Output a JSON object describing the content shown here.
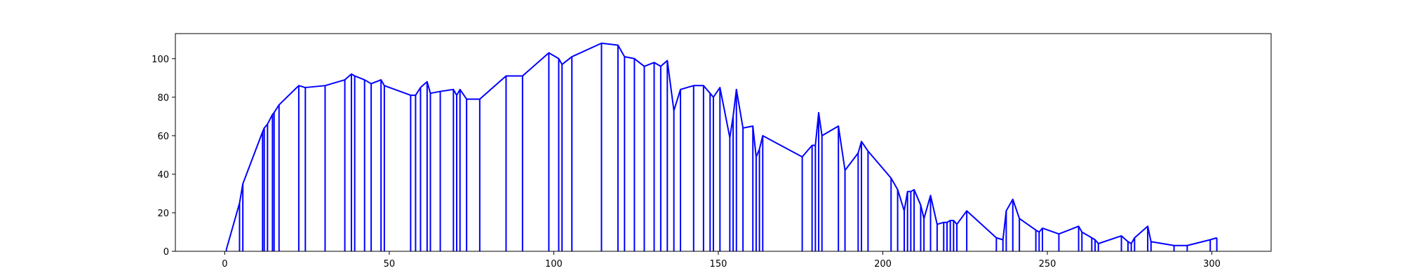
{
  "chart_data": {
    "type": "line",
    "title": "",
    "xlabel": "",
    "ylabel": "",
    "xlim": [
      -15,
      318
    ],
    "ylim": [
      0,
      113
    ],
    "grid": false,
    "xticks": [
      0,
      50,
      100,
      150,
      200,
      250,
      300
    ],
    "yticks": [
      0,
      20,
      40,
      60,
      80,
      100
    ],
    "colors": {
      "series": "#0000ff",
      "axes": "#000000",
      "background": "#ffffff"
    },
    "series": [
      {
        "style": "stems-with-envelope",
        "points": [
          [
            0.5,
            1
          ],
          [
            4.5,
            25
          ],
          [
            5.5,
            35
          ],
          [
            11.5,
            62
          ],
          [
            12,
            64
          ],
          [
            13,
            66
          ],
          [
            14.5,
            71
          ],
          [
            15,
            72
          ],
          [
            16.5,
            76
          ],
          [
            22.5,
            86
          ],
          [
            24.5,
            85
          ],
          [
            30.5,
            86
          ],
          [
            36.5,
            89
          ],
          [
            38.5,
            92
          ],
          [
            39.5,
            91
          ],
          [
            42.5,
            89
          ],
          [
            44.5,
            87
          ],
          [
            47.5,
            89
          ],
          [
            48.5,
            86
          ],
          [
            56.5,
            81
          ],
          [
            58,
            81
          ],
          [
            59.5,
            85
          ],
          [
            61.5,
            88
          ],
          [
            62.5,
            82
          ],
          [
            65.5,
            83
          ],
          [
            69.5,
            84
          ],
          [
            70.5,
            81
          ],
          [
            71.5,
            84
          ],
          [
            73.5,
            79
          ],
          [
            77.5,
            79
          ],
          [
            85.5,
            91
          ],
          [
            90.5,
            91
          ],
          [
            98.5,
            103
          ],
          [
            101.5,
            100
          ],
          [
            102.5,
            97
          ],
          [
            105.5,
            101
          ],
          [
            114.5,
            108
          ],
          [
            119.5,
            107
          ],
          [
            121.5,
            101
          ],
          [
            124.5,
            100
          ],
          [
            127.5,
            96
          ],
          [
            130.5,
            98
          ],
          [
            132.5,
            96
          ],
          [
            134.5,
            99
          ],
          [
            136.5,
            73
          ],
          [
            138.5,
            84
          ],
          [
            142.5,
            86
          ],
          [
            145.5,
            86
          ],
          [
            147.5,
            82
          ],
          [
            148.5,
            80
          ],
          [
            150.5,
            85
          ],
          [
            153.5,
            59
          ],
          [
            154.5,
            70
          ],
          [
            155.5,
            84
          ],
          [
            157.5,
            64
          ],
          [
            160.5,
            65
          ],
          [
            161.5,
            49
          ],
          [
            162.5,
            53
          ],
          [
            163.5,
            60
          ],
          [
            175.5,
            49
          ],
          [
            178.5,
            55
          ],
          [
            179.5,
            55
          ],
          [
            180.5,
            72
          ],
          [
            181.5,
            60
          ],
          [
            186.5,
            65
          ],
          [
            188.5,
            42
          ],
          [
            192.5,
            51
          ],
          [
            193.5,
            57
          ],
          [
            195.5,
            52
          ],
          [
            202.5,
            38
          ],
          [
            204.5,
            32
          ],
          [
            206.5,
            21
          ],
          [
            207.5,
            31
          ],
          [
            208.5,
            31
          ],
          [
            209.5,
            32
          ],
          [
            211.5,
            24
          ],
          [
            212.5,
            17
          ],
          [
            214.5,
            29
          ],
          [
            216.5,
            14
          ],
          [
            218.5,
            15
          ],
          [
            219.5,
            15
          ],
          [
            220.5,
            16
          ],
          [
            221.5,
            16
          ],
          [
            222.5,
            14
          ],
          [
            225.5,
            21
          ],
          [
            234.5,
            7
          ],
          [
            236.5,
            6
          ],
          [
            237.5,
            21
          ],
          [
            239.5,
            27
          ],
          [
            241.5,
            17
          ],
          [
            246.5,
            11
          ],
          [
            247.5,
            10
          ],
          [
            248.5,
            12
          ],
          [
            253.5,
            9
          ],
          [
            259.5,
            13
          ],
          [
            260.5,
            10
          ],
          [
            263.5,
            7
          ],
          [
            264.5,
            6
          ],
          [
            265.5,
            4
          ],
          [
            272.5,
            8
          ],
          [
            274.5,
            5
          ],
          [
            275.5,
            4
          ],
          [
            276.5,
            7
          ],
          [
            280.5,
            13
          ],
          [
            281.5,
            5
          ],
          [
            288.5,
            3
          ],
          [
            292.5,
            3
          ],
          [
            299.5,
            6
          ],
          [
            301.5,
            7
          ]
        ]
      }
    ]
  }
}
